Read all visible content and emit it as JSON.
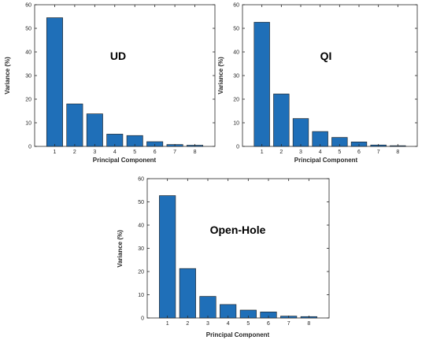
{
  "bar_color": "#1F6FB8",
  "edge_color": "#1a1a1a",
  "chart_data": [
    {
      "type": "bar",
      "title": "UD",
      "xlabel": "Principal Component",
      "ylabel": "Variance (%)",
      "ylim": [
        0,
        60
      ],
      "yticks": [
        "0",
        "10",
        "20",
        "30",
        "40",
        "50",
        "60"
      ],
      "categories": [
        "1",
        "2",
        "3",
        "4",
        "5",
        "6",
        "7",
        "8"
      ],
      "values": [
        54.5,
        18.0,
        13.8,
        5.2,
        4.6,
        2.0,
        0.8,
        0.5
      ]
    },
    {
      "type": "bar",
      "title": "QI",
      "xlabel": "Principal Component",
      "ylabel": "Variance (%)",
      "ylim": [
        0,
        60
      ],
      "yticks": [
        "0",
        "10",
        "20",
        "30",
        "40",
        "50",
        "60"
      ],
      "categories": [
        "1",
        "2",
        "3",
        "4",
        "5",
        "6",
        "7",
        "8"
      ],
      "values": [
        52.6,
        22.2,
        11.8,
        6.3,
        3.8,
        1.9,
        0.6,
        0.3
      ]
    },
    {
      "type": "bar",
      "title": "Open-Hole",
      "xlabel": "Principal Component",
      "ylabel": "Variance (%)",
      "ylim": [
        0,
        60
      ],
      "yticks": [
        "0",
        "10",
        "20",
        "30",
        "40",
        "50",
        "60"
      ],
      "categories": [
        "1",
        "2",
        "3",
        "4",
        "5",
        "6",
        "7",
        "8"
      ],
      "values": [
        52.7,
        21.3,
        9.3,
        5.8,
        3.4,
        2.6,
        0.8,
        0.6
      ]
    }
  ]
}
